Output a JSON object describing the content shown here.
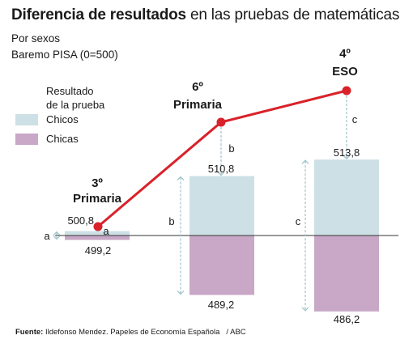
{
  "title_bold": "Diferencia de resultados",
  "title_rest": " en las pruebas de matemáticas",
  "subtitle_1": "Por sexos",
  "subtitle_2": "Baremo PISA (0=500)",
  "legend": {
    "title_line1": "Resultado",
    "title_line2": "de la prueba",
    "boys": "Chicos",
    "girls": "Chicas"
  },
  "source_label": "Fuente:",
  "source_text": " Ildefonso Mendez. Papeles de Economía Española",
  "source_slash": "/ ABC",
  "colors": {
    "boys": "#cde0e5",
    "girls": "#c8a8c6",
    "line": "#d9222a",
    "arrow": "#9fc3ca"
  },
  "chart_data": {
    "type": "bar",
    "baseline": 500,
    "categories": [
      {
        "line1": "3º",
        "line2": "Primaria"
      },
      {
        "line1": "6º",
        "line2": "Primaria"
      },
      {
        "line1": "4º",
        "line2": "ESO"
      }
    ],
    "boys": [
      500.8,
      510.8,
      513.8
    ],
    "girls": [
      499.2,
      489.2,
      486.2
    ],
    "boys_labels": [
      "500,8",
      "510,8",
      "513,8"
    ],
    "girls_labels": [
      "499,2",
      "489,2",
      "486,2"
    ],
    "gap_labels": [
      "a",
      "b",
      "c"
    ]
  }
}
